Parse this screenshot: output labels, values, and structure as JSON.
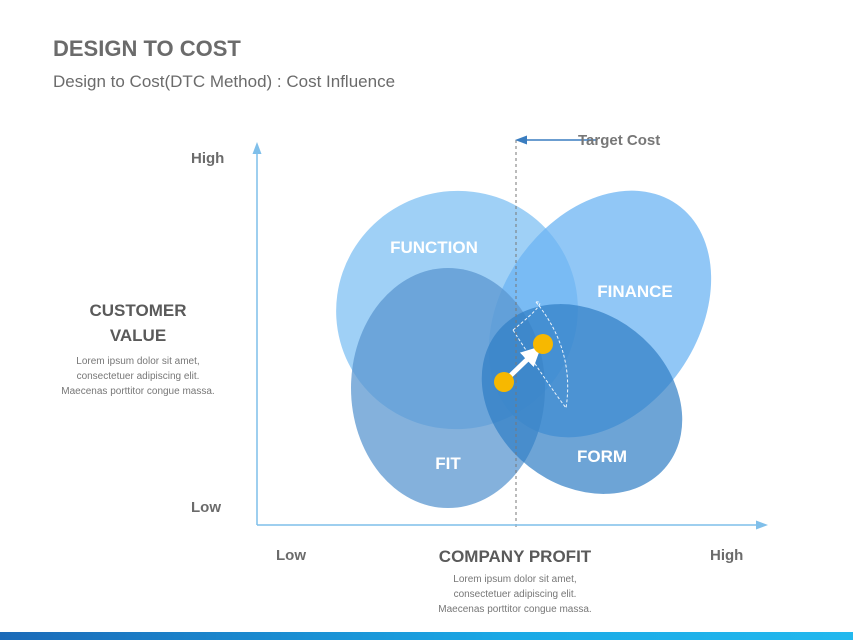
{
  "header": {
    "title": "DESIGN TO COST",
    "subtitle": "Design to Cost(DTC Method) : Cost Influence"
  },
  "y_axis": {
    "high_label": "High",
    "low_label": "Low",
    "title_line1": "CUSTOMER",
    "title_line2": "VALUE",
    "description": [
      "Lorem ipsum dolor sit amet,",
      "consectetuer adipiscing elit.",
      "Maecenas porttitor congue massa."
    ]
  },
  "x_axis": {
    "low_label": "Low",
    "high_label": "High",
    "title": "COMPANY PROFIT",
    "description": [
      "Lorem ipsum dolor sit amet,",
      "consectetuer adipiscing elit.",
      "Maecenas porttitor congue massa."
    ]
  },
  "target_cost": {
    "label": "Target Cost"
  },
  "ellipses": [
    {
      "label": "FUNCTION",
      "color": "#8ec8f5"
    },
    {
      "label": "FINANCE",
      "color": "#6cb4f3"
    },
    {
      "label": "FIT",
      "color": "#5b97d0"
    },
    {
      "label": "FORM",
      "color": "#2f7dc4"
    }
  ],
  "colors": {
    "axis": "#7fbfea",
    "marker": "#f7b800",
    "target_arrow": "#3a7dc0"
  }
}
